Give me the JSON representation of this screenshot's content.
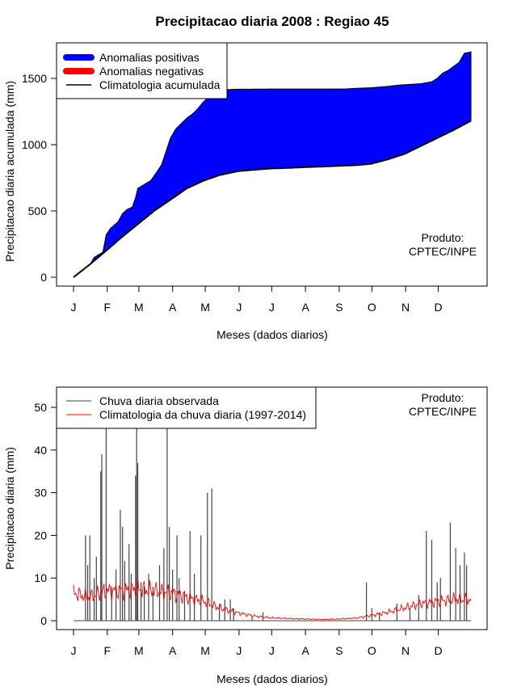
{
  "title": "Precipitacao diaria 2008 : Regiao 45",
  "colors": {
    "positive": "#0000ff",
    "negative": "#ff0000",
    "climatology": "#000000",
    "observed": "#444444",
    "clim_daily": "#ff0000"
  },
  "months": [
    "J",
    "F",
    "M",
    "A",
    "M",
    "J",
    "J",
    "A",
    "S",
    "O",
    "N",
    "D"
  ],
  "chart_data": [
    {
      "type": "area",
      "xlabel": "Meses (dados diarios)",
      "ylabel": "Precipitacao diaria acumulada (mm)",
      "ylim": [
        0,
        1700
      ],
      "yticks": [
        0,
        500,
        1000,
        1500
      ],
      "xlim": [
        0,
        366
      ],
      "legend": [
        "Anomalias positivas",
        "Anomalias negativas",
        "Climatologia acumulada"
      ],
      "product_note": [
        "Produto:",
        "CPTEC/INPE"
      ],
      "observed_cumulative": {
        "x": [
          1,
          10,
          15,
          20,
          25,
          28,
          31,
          35,
          38,
          42,
          46,
          50,
          55,
          58,
          60,
          66,
          72,
          78,
          82,
          86,
          90,
          95,
          100,
          105,
          110,
          115,
          120,
          125,
          130,
          132,
          135,
          140,
          150,
          160,
          180,
          200,
          215,
          230,
          250,
          260,
          275,
          290,
          300,
          310,
          320,
          330,
          335,
          340,
          345,
          350,
          355,
          360,
          366
        ],
        "y": [
          0,
          40,
          80,
          150,
          175,
          190,
          320,
          370,
          390,
          420,
          480,
          510,
          530,
          600,
          670,
          700,
          730,
          800,
          850,
          950,
          1050,
          1120,
          1160,
          1200,
          1230,
          1270,
          1320,
          1360,
          1390,
          1410,
          1410,
          1415,
          1418,
          1418,
          1420,
          1420,
          1420,
          1420,
          1420,
          1425,
          1430,
          1440,
          1450,
          1455,
          1460,
          1475,
          1500,
          1540,
          1560,
          1590,
          1620,
          1690,
          1700
        ]
      },
      "climatology_cumulative": {
        "x": [
          1,
          15,
          31,
          45,
          60,
          75,
          91,
          105,
          121,
          135,
          152,
          166,
          182,
          200,
          213,
          230,
          244,
          260,
          274,
          290,
          305,
          320,
          335,
          350,
          366
        ],
        "y": [
          0,
          90,
          200,
          300,
          400,
          500,
          590,
          670,
          730,
          770,
          800,
          810,
          820,
          825,
          830,
          835,
          840,
          845,
          855,
          890,
          930,
          990,
          1050,
          1110,
          1180
        ]
      }
    },
    {
      "type": "bar",
      "xlabel": "Meses (dados diarios)",
      "ylabel": "Precipitacao diaria (mm)",
      "ylim": [
        0,
        52
      ],
      "yticks": [
        0,
        10,
        20,
        30,
        40,
        50
      ],
      "xlim": [
        0,
        366
      ],
      "legend": [
        "Chuva diaria observada",
        "Climatologia da chuva diaria (1997-2014)"
      ],
      "product_note": [
        "Produto:",
        "CPTEC/INPE"
      ],
      "observed_peaks": [
        {
          "day": 12,
          "value": 20
        },
        {
          "day": 14,
          "value": 13
        },
        {
          "day": 16,
          "value": 20
        },
        {
          "day": 20,
          "value": 10
        },
        {
          "day": 22,
          "value": 15
        },
        {
          "day": 26,
          "value": 35
        },
        {
          "day": 27,
          "value": 39
        },
        {
          "day": 31,
          "value": 50
        },
        {
          "day": 36,
          "value": 8
        },
        {
          "day": 40,
          "value": 12
        },
        {
          "day": 44,
          "value": 26
        },
        {
          "day": 46,
          "value": 22
        },
        {
          "day": 48,
          "value": 14
        },
        {
          "day": 52,
          "value": 18
        },
        {
          "day": 54,
          "value": 11
        },
        {
          "day": 58,
          "value": 34
        },
        {
          "day": 59,
          "value": 50
        },
        {
          "day": 60,
          "value": 37
        },
        {
          "day": 63,
          "value": 9
        },
        {
          "day": 66,
          "value": 8
        },
        {
          "day": 70,
          "value": 11
        },
        {
          "day": 74,
          "value": 8
        },
        {
          "day": 80,
          "value": 13
        },
        {
          "day": 84,
          "value": 17
        },
        {
          "day": 87,
          "value": 50
        },
        {
          "day": 89,
          "value": 22
        },
        {
          "day": 92,
          "value": 12
        },
        {
          "day": 96,
          "value": 20
        },
        {
          "day": 98,
          "value": 10
        },
        {
          "day": 103,
          "value": 7
        },
        {
          "day": 108,
          "value": 21
        },
        {
          "day": 112,
          "value": 11
        },
        {
          "day": 118,
          "value": 20
        },
        {
          "day": 124,
          "value": 30
        },
        {
          "day": 128,
          "value": 31
        },
        {
          "day": 135,
          "value": 4
        },
        {
          "day": 140,
          "value": 5
        },
        {
          "day": 145,
          "value": 5
        },
        {
          "day": 148,
          "value": 3
        },
        {
          "day": 165,
          "value": 1
        },
        {
          "day": 175,
          "value": 2
        },
        {
          "day": 270,
          "value": 9
        },
        {
          "day": 275,
          "value": 3
        },
        {
          "day": 282,
          "value": 2
        },
        {
          "day": 298,
          "value": 4
        },
        {
          "day": 310,
          "value": 3
        },
        {
          "day": 318,
          "value": 6
        },
        {
          "day": 325,
          "value": 21
        },
        {
          "day": 330,
          "value": 19
        },
        {
          "day": 335,
          "value": 9
        },
        {
          "day": 338,
          "value": 10
        },
        {
          "day": 347,
          "value": 23
        },
        {
          "day": 352,
          "value": 17
        },
        {
          "day": 356,
          "value": 13
        },
        {
          "day": 360,
          "value": 16
        },
        {
          "day": 362,
          "value": 13
        }
      ],
      "climatology_daily": {
        "x": [
          1,
          15,
          31,
          45,
          60,
          75,
          91,
          105,
          121,
          135,
          152,
          170,
          182,
          200,
          213,
          230,
          244,
          260,
          274,
          290,
          305,
          320,
          335,
          350,
          366
        ],
        "y": [
          6.5,
          5.5,
          7.0,
          7.0,
          7.5,
          7.0,
          6.5,
          5.5,
          4.5,
          3.0,
          1.8,
          1.0,
          0.7,
          0.5,
          0.4,
          0.3,
          0.4,
          0.6,
          1.2,
          2.0,
          3.0,
          4.0,
          4.5,
          5.0,
          5.0
        ]
      }
    }
  ]
}
